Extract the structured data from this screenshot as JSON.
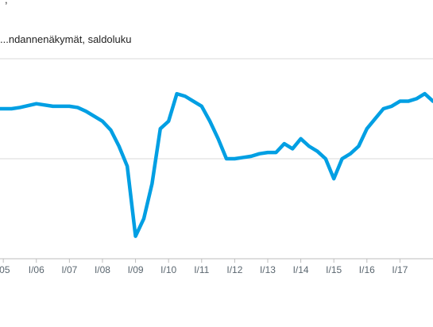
{
  "chart_data": {
    "type": "line",
    "title": "...ndannenäkymät, saldoluku",
    "top_fragment": ",",
    "xlabel": "",
    "ylabel": "",
    "grid": true,
    "legend": "none",
    "series_color": "#009fe3",
    "grid_color": "#d9d9d9",
    "axis_color": "#bdbdbd",
    "x_range": [
      2004.9,
      2018.0
    ],
    "ylim": [
      -40,
      40
    ],
    "y_gridlines": [
      -40,
      0,
      40
    ],
    "x_ticks": [
      {
        "value": 2005,
        "label": "/05"
      },
      {
        "value": 2006,
        "label": "I/06"
      },
      {
        "value": 2007,
        "label": "I/07"
      },
      {
        "value": 2008,
        "label": "I/08"
      },
      {
        "value": 2009,
        "label": "I/09"
      },
      {
        "value": 2010,
        "label": "I/10"
      },
      {
        "value": 2011,
        "label": "I/11"
      },
      {
        "value": 2012,
        "label": "I/12"
      },
      {
        "value": 2013,
        "label": "I/13"
      },
      {
        "value": 2014,
        "label": "I/14"
      },
      {
        "value": 2015,
        "label": "I/15"
      },
      {
        "value": 2016,
        "label": "I/16"
      },
      {
        "value": 2017,
        "label": "I/17"
      }
    ],
    "x": [
      2004.9,
      2005.25,
      2005.5,
      2006.0,
      2006.5,
      2007.0,
      2007.25,
      2007.5,
      2007.75,
      2008.0,
      2008.25,
      2008.5,
      2008.75,
      2009.0,
      2009.25,
      2009.5,
      2009.75,
      2010.0,
      2010.25,
      2010.5,
      2010.75,
      2011.0,
      2011.25,
      2011.5,
      2011.75,
      2012.0,
      2012.25,
      2012.5,
      2012.75,
      2013.0,
      2013.25,
      2013.5,
      2013.75,
      2014.0,
      2014.25,
      2014.5,
      2014.75,
      2015.0,
      2015.25,
      2015.5,
      2015.75,
      2016.0,
      2016.25,
      2016.5,
      2016.75,
      2017.0,
      2017.25,
      2017.5,
      2017.75,
      2018.0
    ],
    "y": [
      20,
      20,
      20.5,
      22,
      21,
      21,
      20.5,
      19,
      17,
      15,
      11.5,
      5,
      -3,
      -31,
      -24,
      -10,
      12,
      15,
      26,
      25,
      23,
      21,
      15,
      8,
      0,
      0,
      0.5,
      1,
      2,
      2.5,
      2.5,
      6,
      4,
      8,
      5,
      3,
      0,
      -8,
      0,
      2,
      5,
      12,
      16,
      20,
      21,
      23,
      23,
      24,
      26,
      23
    ]
  }
}
